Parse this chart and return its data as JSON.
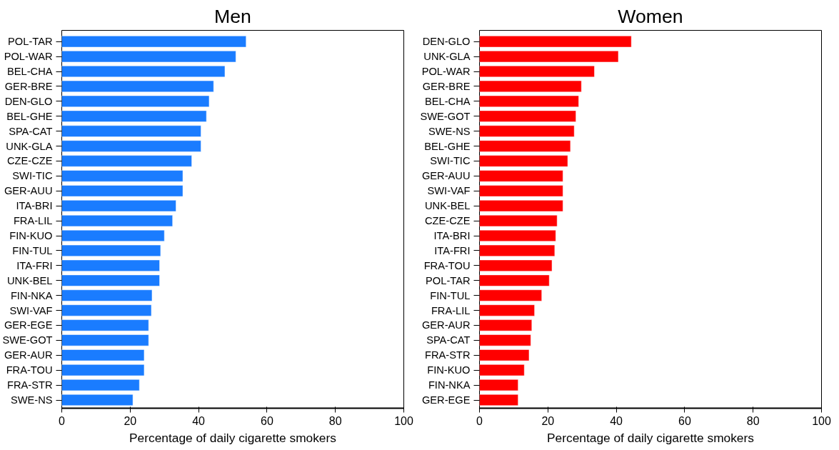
{
  "chart_data": [
    {
      "type": "bar",
      "orientation": "horizontal",
      "title": "Men",
      "xlabel": "Percentage of daily cigarette smokers",
      "categories": [
        "POL-TAR",
        "POL-WAR",
        "BEL-CHA",
        "GER-BRE",
        "DEN-GLO",
        "BEL-GHE",
        "SPA-CAT",
        "UNK-GLA",
        "CZE-CZE",
        "SWI-TIC",
        "GER-AUU",
        "ITA-BRI",
        "FRA-LIL",
        "FIN-KUO",
        "FIN-TUL",
        "ITA-FRI",
        "UNK-BEL",
        "FIN-NKA",
        "SWI-VAF",
        "GER-EGE",
        "SWE-GOT",
        "GER-AUR",
        "FRA-TOU",
        "FRA-STR",
        "SWE-NS"
      ],
      "series": [
        {
          "color": "#1a7cff",
          "values": [
            53.9,
            50.9,
            47.7,
            44.4,
            43.1,
            42.3,
            40.7,
            40.7,
            38.0,
            35.4,
            35.4,
            33.4,
            32.4,
            30.0,
            28.9,
            28.6,
            28.6,
            26.4,
            26.2,
            25.4,
            25.4,
            24.1,
            24.1,
            22.7,
            20.8
          ]
        }
      ],
      "xlim": [
        0,
        100
      ],
      "xticks": [
        0,
        20,
        40,
        60,
        80,
        100
      ]
    },
    {
      "type": "bar",
      "orientation": "horizontal",
      "title": "Women",
      "xlabel": "Percentage of daily cigarette smokers",
      "categories": [
        "DEN-GLO",
        "UNK-GLA",
        "POL-WAR",
        "GER-BRE",
        "BEL-CHA",
        "SWE-GOT",
        "SWE-NS",
        "BEL-GHE",
        "SWI-TIC",
        "GER-AUU",
        "SWI-VAF",
        "UNK-BEL",
        "CZE-CZE",
        "ITA-BRI",
        "ITA-FRI",
        "FRA-TOU",
        "POL-TAR",
        "FIN-TUL",
        "FRA-LIL",
        "GER-AUR",
        "SPA-CAT",
        "FRA-STR",
        "FIN-KUO",
        "FIN-NKA",
        "GER-EGE"
      ],
      "series": [
        {
          "color": "#ff0000",
          "values": [
            44.4,
            40.6,
            33.6,
            29.8,
            29.0,
            28.2,
            27.7,
            26.6,
            25.8,
            24.4,
            24.4,
            24.4,
            22.7,
            22.3,
            22.0,
            21.2,
            20.4,
            18.2,
            16.1,
            15.3,
            15.0,
            14.5,
            13.1,
            11.3,
            11.3
          ]
        }
      ],
      "xlim": [
        0,
        100
      ],
      "xticks": [
        0,
        20,
        40,
        60,
        80,
        100
      ]
    }
  ]
}
